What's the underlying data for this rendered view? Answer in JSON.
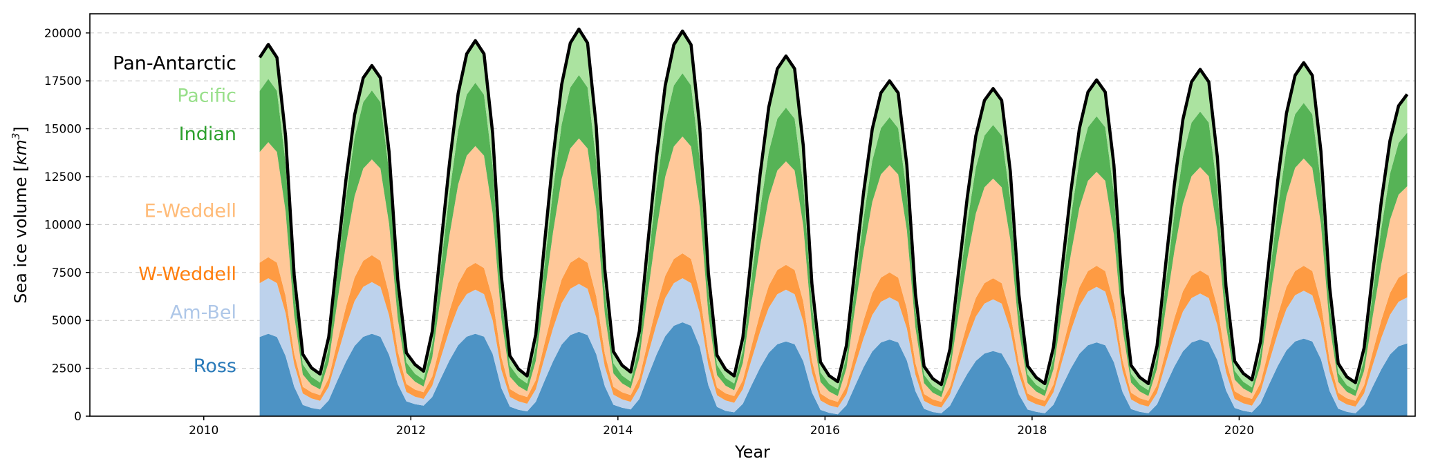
{
  "chart_data": {
    "type": "area",
    "stacked": true,
    "title": "",
    "xlabel": "Year",
    "ylabel": "Sea ice volume [km³]",
    "ylabel_base": "Sea ice volume [",
    "ylabel_unit": "km",
    "ylabel_exp": "3",
    "ylabel_close": "]",
    "xlim": [
      2008.9,
      2021.7
    ],
    "ylim": [
      0,
      21000
    ],
    "x_ticks": [
      2010,
      2012,
      2014,
      2016,
      2018,
      2020
    ],
    "x_tick_labels": [
      "2010",
      "2012",
      "2014",
      "2016",
      "2018",
      "2020"
    ],
    "y_ticks": [
      0,
      2500,
      5000,
      7500,
      10000,
      12500,
      15000,
      17500,
      20000
    ],
    "y_tick_labels": [
      "0",
      "2500",
      "5000",
      "7500",
      "10000",
      "12500",
      "15000",
      "17500",
      "20000"
    ],
    "grid": "horizontal dashed",
    "legend": "inline labels at left",
    "series": [
      {
        "name": "Ross",
        "color": "#4d93c5",
        "label_color": "#2a7ab9",
        "years": [
          {
            "year": 2010,
            "max": 4300,
            "min": 150
          },
          {
            "year": 2011,
            "max": 4300,
            "min": 350
          },
          {
            "year": 2012,
            "max": 4300,
            "min": 550
          },
          {
            "year": 2013,
            "max": 4400,
            "min": 250
          },
          {
            "year": 2014,
            "max": 4900,
            "min": 350
          },
          {
            "year": 2015,
            "max": 3900,
            "min": 200
          },
          {
            "year": 2016,
            "max": 4000,
            "min": 100
          },
          {
            "year": 2017,
            "max": 3400,
            "min": 150
          },
          {
            "year": 2018,
            "max": 3850,
            "min": 150
          },
          {
            "year": 2019,
            "max": 4000,
            "min": 150
          },
          {
            "year": 2020,
            "max": 4050,
            "min": 200
          },
          {
            "year": 2021,
            "max": 3800,
            "min": 150
          }
        ]
      },
      {
        "name": "Am-Bel",
        "color": "#bdd2ec",
        "label_color": "#aec7e8",
        "years": [
          {
            "year": 2010,
            "max": 2900,
            "min": 550
          },
          {
            "year": 2011,
            "max": 2700,
            "min": 450
          },
          {
            "year": 2012,
            "max": 2300,
            "min": 350
          },
          {
            "year": 2013,
            "max": 2500,
            "min": 400
          },
          {
            "year": 2014,
            "max": 2300,
            "min": 400
          },
          {
            "year": 2015,
            "max": 2700,
            "min": 500
          },
          {
            "year": 2016,
            "max": 2200,
            "min": 350
          },
          {
            "year": 2017,
            "max": 2700,
            "min": 300
          },
          {
            "year": 2018,
            "max": 2900,
            "min": 350
          },
          {
            "year": 2019,
            "max": 2400,
            "min": 350
          },
          {
            "year": 2020,
            "max": 2500,
            "min": 350
          },
          {
            "year": 2021,
            "max": 2400,
            "min": 350
          }
        ]
      },
      {
        "name": "W-Weddell",
        "color": "#fe9b43",
        "label_color": "#ff7f0e",
        "years": [
          {
            "year": 2010,
            "max": 1100,
            "min": 350
          },
          {
            "year": 2011,
            "max": 1400,
            "min": 300
          },
          {
            "year": 2012,
            "max": 1400,
            "min": 350
          },
          {
            "year": 2013,
            "max": 1400,
            "min": 350
          },
          {
            "year": 2014,
            "max": 1300,
            "min": 350
          },
          {
            "year": 2015,
            "max": 1300,
            "min": 350
          },
          {
            "year": 2016,
            "max": 1300,
            "min": 300
          },
          {
            "year": 2017,
            "max": 1100,
            "min": 300
          },
          {
            "year": 2018,
            "max": 1100,
            "min": 300
          },
          {
            "year": 2019,
            "max": 1200,
            "min": 300
          },
          {
            "year": 2020,
            "max": 1300,
            "min": 350
          },
          {
            "year": 2021,
            "max": 1300,
            "min": 300
          }
        ]
      },
      {
        "name": "E-Weddell",
        "color": "#ffc899",
        "label_color": "#ffbb78",
        "years": [
          {
            "year": 2010,
            "max": 6000,
            "min": 350
          },
          {
            "year": 2011,
            "max": 5000,
            "min": 300
          },
          {
            "year": 2012,
            "max": 6100,
            "min": 300
          },
          {
            "year": 2013,
            "max": 6200,
            "min": 300
          },
          {
            "year": 2014,
            "max": 6100,
            "min": 350
          },
          {
            "year": 2015,
            "max": 5400,
            "min": 300
          },
          {
            "year": 2016,
            "max": 5600,
            "min": 300
          },
          {
            "year": 2017,
            "max": 5200,
            "min": 250
          },
          {
            "year": 2018,
            "max": 4900,
            "min": 250
          },
          {
            "year": 2019,
            "max": 5400,
            "min": 250
          },
          {
            "year": 2020,
            "max": 5600,
            "min": 300
          },
          {
            "year": 2021,
            "max": 4500,
            "min": 250
          }
        ]
      },
      {
        "name": "Indian",
        "color": "#56b356",
        "label_color": "#2ca02c",
        "years": [
          {
            "year": 2010,
            "max": 3300,
            "min": 500
          },
          {
            "year": 2011,
            "max": 3600,
            "min": 350
          },
          {
            "year": 2012,
            "max": 3300,
            "min": 350
          },
          {
            "year": 2013,
            "max": 3300,
            "min": 400
          },
          {
            "year": 2014,
            "max": 3300,
            "min": 350
          },
          {
            "year": 2015,
            "max": 2800,
            "min": 350
          },
          {
            "year": 2016,
            "max": 2500,
            "min": 350
          },
          {
            "year": 2017,
            "max": 2800,
            "min": 300
          },
          {
            "year": 2018,
            "max": 2900,
            "min": 300
          },
          {
            "year": 2019,
            "max": 2900,
            "min": 300
          },
          {
            "year": 2020,
            "max": 2900,
            "min": 300
          },
          {
            "year": 2021,
            "max": 2800,
            "min": 300
          }
        ]
      },
      {
        "name": "Pacific",
        "color": "#abe3a0",
        "label_color": "#98df8a",
        "years": [
          {
            "year": 2010,
            "max": 1800,
            "min": 400
          },
          {
            "year": 2011,
            "max": 1300,
            "min": 450
          },
          {
            "year": 2012,
            "max": 2200,
            "min": 450
          },
          {
            "year": 2013,
            "max": 2400,
            "min": 400
          },
          {
            "year": 2014,
            "max": 2200,
            "min": 500
          },
          {
            "year": 2015,
            "max": 2700,
            "min": 400
          },
          {
            "year": 2016,
            "max": 1900,
            "min": 400
          },
          {
            "year": 2017,
            "max": 1900,
            "min": 350
          },
          {
            "year": 2018,
            "max": 1900,
            "min": 350
          },
          {
            "year": 2019,
            "max": 2200,
            "min": 350
          },
          {
            "year": 2020,
            "max": 2100,
            "min": 400
          },
          {
            "year": 2021,
            "max": 2000,
            "min": 400
          }
        ]
      }
    ],
    "total": {
      "name": "Pan-Antarctic",
      "color": "#000000",
      "label_color": "#000000",
      "years": [
        {
          "year": 2010,
          "max": 19300,
          "min": 2300
        },
        {
          "year": 2011,
          "max": 19300,
          "min": 2650
        },
        {
          "year": 2012,
          "max": 19600,
          "min": 2900
        },
        {
          "year": 2013,
          "max": 20200,
          "min": 2950
        },
        {
          "year": 2014,
          "max": 20300,
          "min": 3100
        },
        {
          "year": 2015,
          "max": 18900,
          "min": 2150
        },
        {
          "year": 2016,
          "max": 17600,
          "min": 1700
        },
        {
          "year": 2017,
          "max": 17100,
          "min": 1800
        },
        {
          "year": 2018,
          "max": 17500,
          "min": 1800
        },
        {
          "year": 2019,
          "max": 18200,
          "min": 1900
        },
        {
          "year": 2020,
          "max": 18400,
          "min": 2050
        },
        {
          "year": 2021,
          "max": 18200,
          "min": 1900
        }
      ],
      "start_value": 17000
    }
  }
}
